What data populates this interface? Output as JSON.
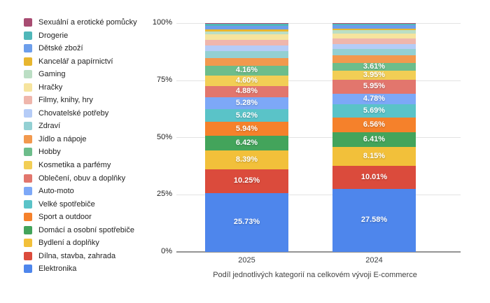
{
  "chart_data": {
    "type": "bar",
    "variant": "stacked-100-percent",
    "title": "Podíl jednotlivých kategorií na celkovém vývoji E-commerce",
    "categories": [
      "2025",
      "2024"
    ],
    "y_ticks": [
      "100%",
      "75%",
      "50%",
      "25%",
      "0%"
    ],
    "ylim": [
      0,
      100
    ],
    "grid": true,
    "legend_position": "left",
    "series_order": "top-to-bottom",
    "series": [
      {
        "name": "Sexuální a erotické pomůcky",
        "color": "#A84C72",
        "values": [
          0.4,
          0.36
        ],
        "labels": [
          "",
          ""
        ]
      },
      {
        "name": "Drogerie",
        "color": "#50B7B9",
        "values": [
          0.83,
          0.7
        ],
        "labels": [
          "",
          ""
        ]
      },
      {
        "name": "Dětské zboží",
        "color": "#6D9EEB",
        "values": [
          1.45,
          1.35
        ],
        "labels": [
          "",
          ""
        ]
      },
      {
        "name": "Kancelář a papírnictví",
        "color": "#E8B62F",
        "values": [
          0.85,
          0.8
        ],
        "labels": [
          "",
          ""
        ]
      },
      {
        "name": "Gaming",
        "color": "#BBDEC4",
        "values": [
          1.32,
          1.25
        ],
        "labels": [
          "",
          ""
        ]
      },
      {
        "name": "Hračky",
        "color": "#F6E49E",
        "values": [
          2.5,
          2.3
        ],
        "labels": [
          "",
          ""
        ]
      },
      {
        "name": "Filmy, knihy, hry",
        "color": "#EFB6AC",
        "values": [
          2.46,
          2.3
        ],
        "labels": [
          "",
          ""
        ]
      },
      {
        "name": "Chovatelské potřeby",
        "color": "#B5CCF7",
        "values": [
          2.51,
          2.35
        ],
        "labels": [
          "",
          ""
        ]
      },
      {
        "name": "Zdraví",
        "color": "#93D0D3",
        "values": [
          2.86,
          2.6
        ],
        "labels": [
          "",
          ""
        ]
      },
      {
        "name": "Jídlo a nápoje",
        "color": "#F2994E",
        "values": [
          3.55,
          3.3
        ],
        "labels": [
          "",
          ""
        ]
      },
      {
        "name": "Hobby",
        "color": "#6DBD8B",
        "values": [
          4.16,
          3.61
        ],
        "labels": [
          "4.16%",
          "3.61%"
        ]
      },
      {
        "name": "Kosmetika a parfémy",
        "color": "#F2CE55",
        "values": [
          4.6,
          3.95
        ],
        "labels": [
          "4.60%",
          "3.95%"
        ]
      },
      {
        "name": "Oblečení, obuv a doplňky",
        "color": "#E2766D",
        "values": [
          4.88,
          5.95
        ],
        "labels": [
          "4.88%",
          "5.95%"
        ]
      },
      {
        "name": "Auto-moto",
        "color": "#7DA8F7",
        "values": [
          5.28,
          4.78
        ],
        "labels": [
          "5.28%",
          "4.78%"
        ]
      },
      {
        "name": "Velké spotřebiče",
        "color": "#5AC3C8",
        "values": [
          5.62,
          5.69
        ],
        "labels": [
          "5.62%",
          "5.69%"
        ]
      },
      {
        "name": "Sport a outdoor",
        "color": "#F5812B",
        "values": [
          5.94,
          6.56
        ],
        "labels": [
          "5.94%",
          "6.56%"
        ]
      },
      {
        "name": "Domácí a osobní spotřebiče",
        "color": "#43A45B",
        "values": [
          6.42,
          6.41
        ],
        "labels": [
          "6.42%",
          "6.41%"
        ]
      },
      {
        "name": "Bydlení a doplňky",
        "color": "#F2C03A",
        "values": [
          8.39,
          8.15
        ],
        "labels": [
          "8.39%",
          "8.15%"
        ]
      },
      {
        "name": "Dílna, stavba, zahrada",
        "color": "#DB4B3C",
        "values": [
          10.25,
          10.01
        ],
        "labels": [
          "10.25%",
          "10.01%"
        ]
      },
      {
        "name": "Elektronika",
        "color": "#4E86EC",
        "values": [
          25.73,
          27.58
        ],
        "labels": [
          "25.73%",
          "27.58%"
        ]
      }
    ]
  }
}
